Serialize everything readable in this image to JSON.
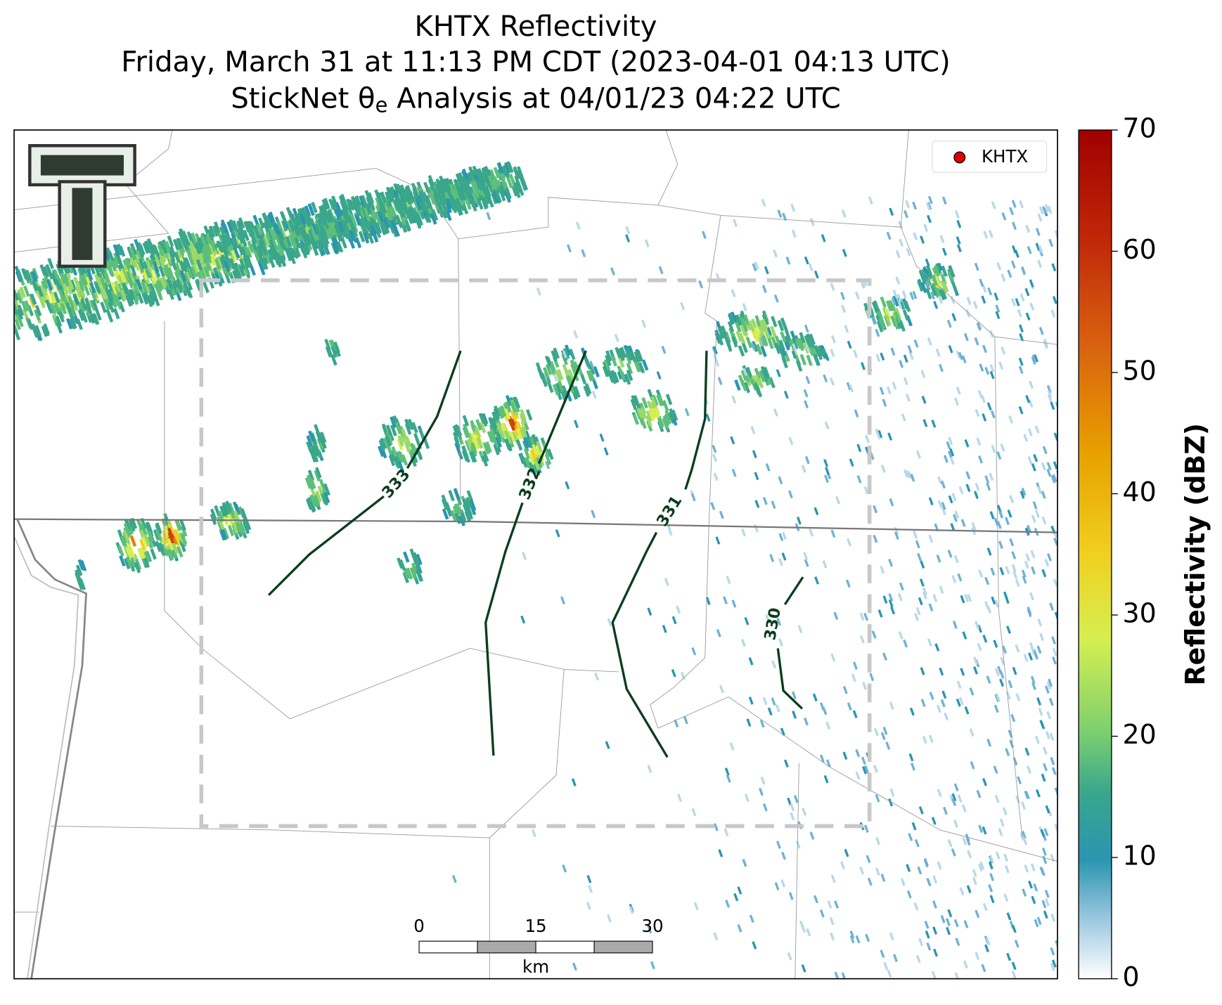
{
  "title": "KHTX Reflectivity",
  "subtitle_1": "Friday, March 31 at 11:13 PM CDT (2023-04-01 04:13 UTC)",
  "subtitle_2": {
    "before": "StickNet θ",
    "sub": "e",
    "after": " Analysis at 04/01/23 04:22 UTC"
  },
  "legend": {
    "label": "KHTX",
    "color": "#e00000"
  },
  "contours": [
    {
      "level": 333
    },
    {
      "level": 332
    },
    {
      "level": 331
    },
    {
      "level": 330
    }
  ],
  "scale_bar": {
    "ticks": [
      0,
      15,
      30
    ],
    "unit": "km"
  },
  "colorbar": {
    "label": "Reflectivity (dBZ)",
    "lim": [
      0,
      70
    ],
    "ticks": [
      0,
      10,
      20,
      30,
      40,
      50,
      60,
      70
    ]
  }
}
